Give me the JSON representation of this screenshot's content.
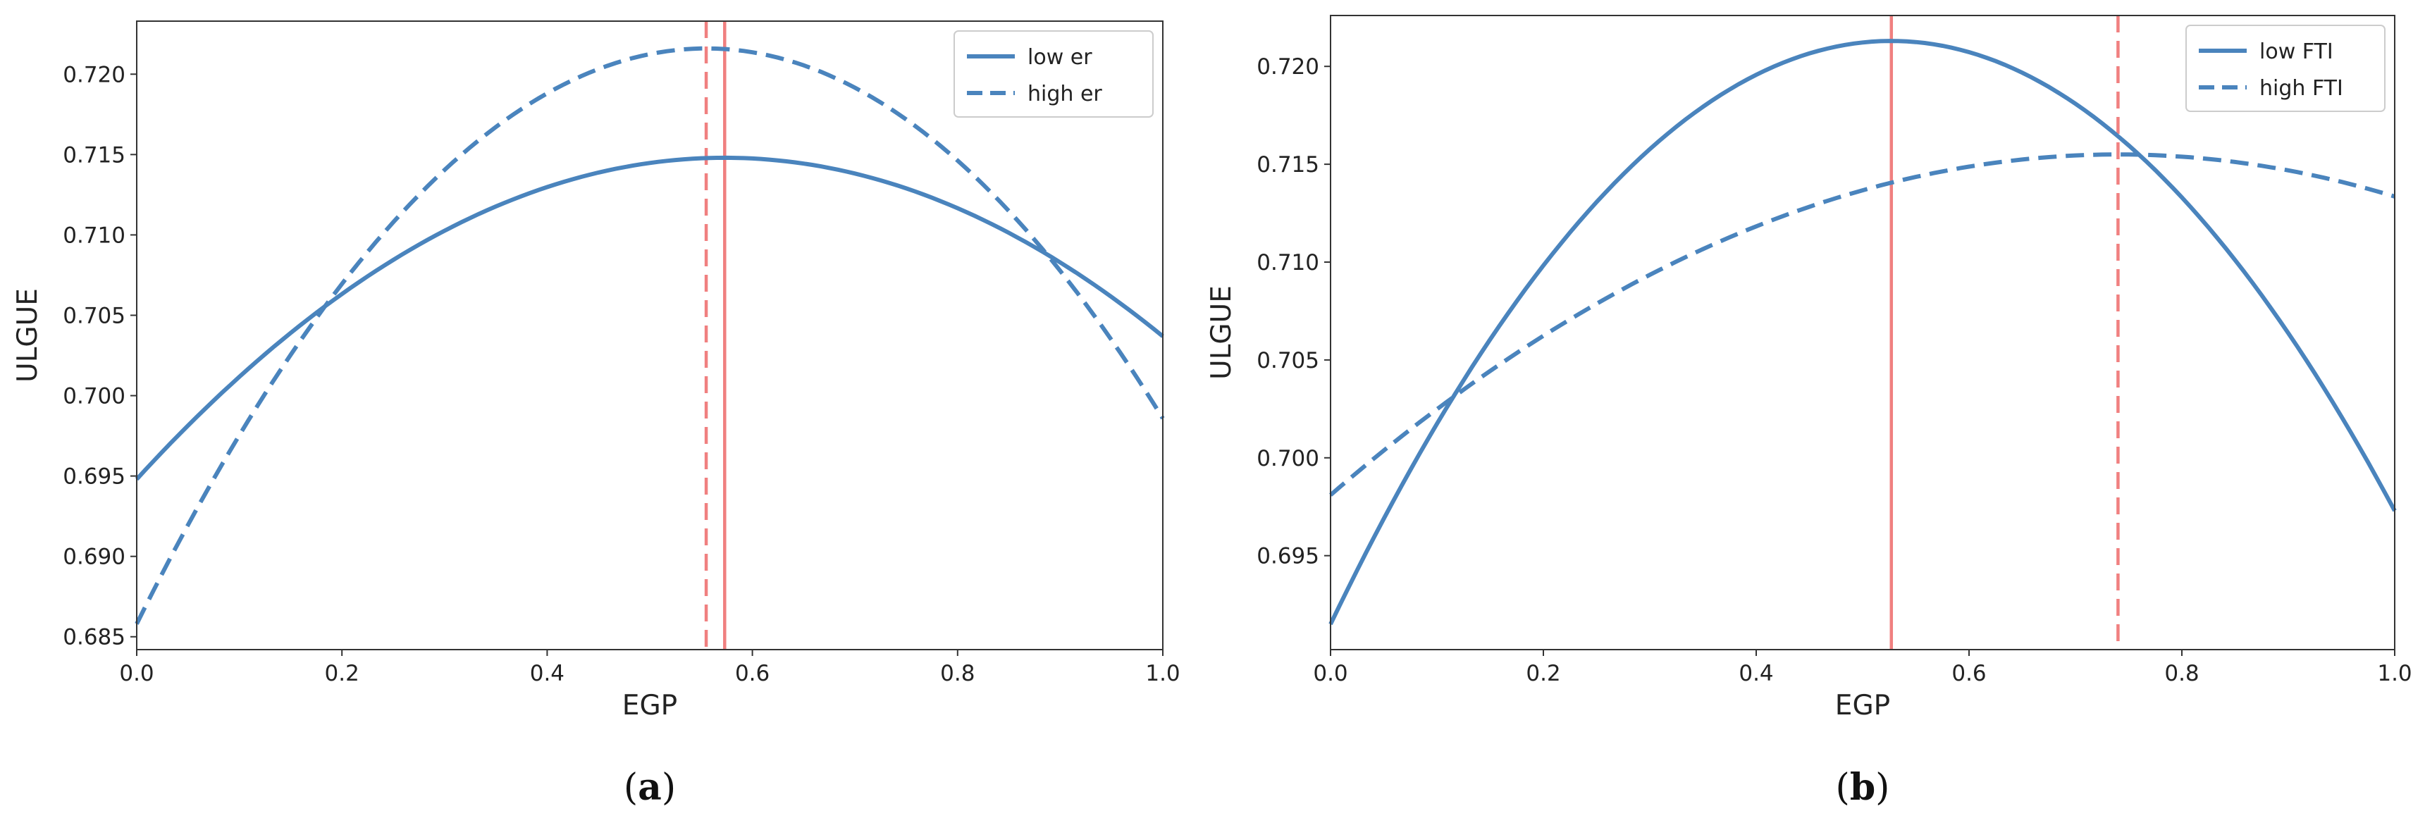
{
  "chart_data": [
    {
      "type": "line",
      "caption": {
        "open": "(",
        "letter": "a",
        "close": ")"
      },
      "xlabel": "EGP",
      "ylabel": "ULGUE",
      "xlim": [
        0.0,
        1.0
      ],
      "ylim": [
        0.6842,
        0.7233
      ],
      "xticks": [
        "0.0",
        "0.2",
        "0.4",
        "0.6",
        "0.8",
        "1.0"
      ],
      "yticks": [
        "0.685",
        "0.690",
        "0.695",
        "0.700",
        "0.705",
        "0.710",
        "0.715",
        "0.720"
      ],
      "series": [
        {
          "name": "low er",
          "style": "solid",
          "color": "#4a84bd",
          "model": "quadratic",
          "peak_x": 0.573,
          "peak_y": 0.7148,
          "y_at_x0": 0.6948
        },
        {
          "name": "high er",
          "style": "dashed",
          "color": "#4a84bd",
          "model": "quadratic",
          "peak_x": 0.555,
          "peak_y": 0.7216,
          "y_at_x0": 0.6858
        }
      ],
      "vlines": [
        {
          "x": 0.573,
          "style": "solid",
          "color": "#f08080"
        },
        {
          "x": 0.555,
          "style": "dashed",
          "color": "#f08080"
        }
      ],
      "legend_position": "top-right",
      "grid": false
    },
    {
      "type": "line",
      "caption": {
        "open": "(",
        "letter": "b",
        "close": ")"
      },
      "xlabel": "EGP",
      "ylabel": "ULGUE",
      "xlim": [
        0.0,
        1.0
      ],
      "ylim": [
        0.6902,
        0.7226
      ],
      "xticks": [
        "0.0",
        "0.2",
        "0.4",
        "0.6",
        "0.8",
        "1.0"
      ],
      "yticks": [
        "0.695",
        "0.700",
        "0.705",
        "0.710",
        "0.715",
        "0.720"
      ],
      "series": [
        {
          "name": "low FTI",
          "style": "solid",
          "color": "#4a84bd",
          "model": "quadratic",
          "peak_x": 0.527,
          "peak_y": 0.7213,
          "y_at_x0": 0.6915
        },
        {
          "name": "high FTI",
          "style": "dashed",
          "color": "#4a84bd",
          "model": "quadratic",
          "peak_x": 0.74,
          "peak_y": 0.7155,
          "y_at_x0": 0.6981
        }
      ],
      "vlines": [
        {
          "x": 0.527,
          "style": "solid",
          "color": "#f08080"
        },
        {
          "x": 0.74,
          "style": "dashed",
          "color": "#f08080"
        }
      ],
      "legend_position": "top-right",
      "grid": false
    }
  ]
}
